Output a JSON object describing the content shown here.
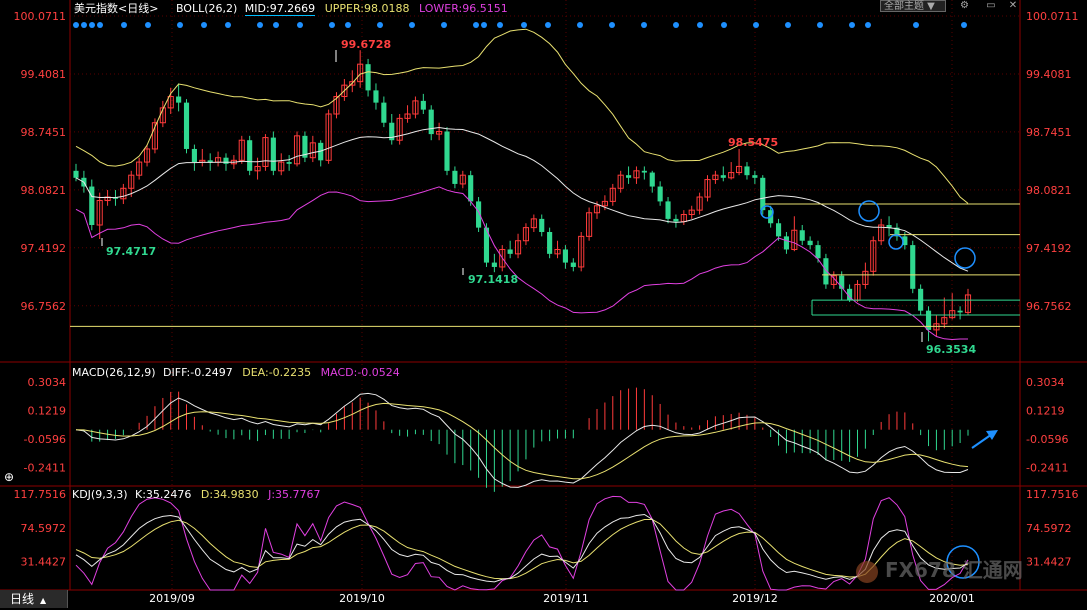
{
  "header": {
    "title": "美元指数<日线>",
    "boll_label": "BOLL(26,2)",
    "mid": "MID:97.2669",
    "upper": "UPPER:98.0188",
    "lower": "LOWER:96.5151",
    "theme_button": "全部主题"
  },
  "colors": {
    "up": "#ff3b3b",
    "down": "#30d890",
    "mid": "#e8e8e8",
    "upper": "#e8e070",
    "lower": "#e040e0",
    "axis_red": "#ff4040",
    "grid": "#5a0000",
    "marker": "#1e90ff"
  },
  "timeframe_tab": "日线",
  "dates": [
    "2019/09",
    "2019/10",
    "2019/11",
    "2019/12",
    "2020/01"
  ],
  "main_panel": {
    "y_ticks": [
      "100.0711",
      "99.4081",
      "98.7451",
      "98.0821",
      "97.4192",
      "96.7562"
    ],
    "annotations": [
      "99.6728",
      "97.4717",
      "97.1418",
      "98.5475",
      "96.3534"
    ],
    "horizontal_levels": [
      97.92,
      97.57,
      97.11,
      96.82,
      96.65,
      96.52
    ]
  },
  "macd_panel": {
    "title": "MACD(26,12,9)",
    "diff": "DIFF:-0.2497",
    "dea": "DEA:-0.2235",
    "macd": "MACD:-0.0524",
    "y_ticks": [
      "0.3034",
      "0.1219",
      "-0.0596",
      "-0.2411"
    ]
  },
  "kdj_panel": {
    "title": "KDJ(9,3,3)",
    "k": "K:35.2476",
    "d": "D:34.9830",
    "j": "J:35.7767",
    "y_ticks": [
      "117.7516",
      "74.5972",
      "31.4427"
    ]
  },
  "watermark": "FX678 汇通网",
  "chart_data": {
    "type": "candlestick",
    "title": "美元指数<日线>",
    "ylim": [
      96.25,
      100.0711
    ],
    "candles": [
      [
        98.3,
        98.22,
        98.38,
        98.18
      ],
      [
        98.22,
        98.12,
        98.3,
        98.05
      ],
      [
        98.12,
        97.68,
        98.2,
        97.62
      ],
      [
        97.68,
        97.96,
        98.05,
        97.52
      ],
      [
        97.96,
        98.0,
        98.08,
        97.9
      ],
      [
        98.0,
        97.98,
        98.08,
        97.9
      ],
      [
        97.98,
        98.1,
        98.15,
        97.92
      ],
      [
        98.1,
        98.25,
        98.3,
        98.0
      ],
      [
        98.25,
        98.4,
        98.45,
        98.2
      ],
      [
        98.4,
        98.55,
        98.6,
        98.35
      ],
      [
        98.55,
        98.85,
        98.9,
        98.5
      ],
      [
        98.85,
        99.02,
        99.1,
        98.8
      ],
      [
        99.02,
        99.15,
        99.25,
        98.95
      ],
      [
        99.15,
        99.08,
        99.3,
        98.98
      ],
      [
        99.08,
        98.55,
        99.12,
        98.5
      ],
      [
        98.55,
        98.4,
        98.6,
        98.3
      ],
      [
        98.4,
        98.42,
        98.55,
        98.35
      ],
      [
        98.42,
        98.4,
        98.5,
        98.3
      ],
      [
        98.4,
        98.45,
        98.52,
        98.35
      ],
      [
        98.45,
        98.38,
        98.5,
        98.3
      ],
      [
        98.38,
        98.42,
        98.48,
        98.32
      ],
      [
        98.42,
        98.65,
        98.7,
        98.38
      ],
      [
        98.65,
        98.3,
        98.7,
        98.25
      ],
      [
        98.3,
        98.35,
        98.45,
        98.2
      ],
      [
        98.35,
        98.68,
        98.72,
        98.3
      ],
      [
        98.68,
        98.3,
        98.75,
        98.25
      ],
      [
        98.3,
        98.4,
        98.5,
        98.25
      ],
      [
        98.4,
        98.38,
        98.48,
        98.3
      ],
      [
        98.38,
        98.7,
        98.75,
        98.35
      ],
      [
        98.7,
        98.45,
        98.75,
        98.4
      ],
      [
        98.45,
        98.62,
        98.7,
        98.4
      ],
      [
        98.62,
        98.42,
        98.65,
        98.35
      ],
      [
        98.42,
        98.95,
        99.0,
        98.38
      ],
      [
        98.95,
        99.15,
        99.2,
        98.9
      ],
      [
        99.15,
        99.28,
        99.35,
        99.1
      ],
      [
        99.28,
        99.32,
        99.45,
        99.2
      ],
      [
        99.32,
        99.52,
        99.68,
        99.25
      ],
      [
        99.52,
        99.22,
        99.58,
        99.15
      ],
      [
        99.22,
        99.08,
        99.3,
        99.0
      ],
      [
        99.08,
        98.85,
        99.15,
        98.8
      ],
      [
        98.85,
        98.65,
        98.95,
        98.6
      ],
      [
        98.65,
        98.9,
        98.95,
        98.6
      ],
      [
        98.9,
        98.95,
        99.05,
        98.85
      ],
      [
        98.95,
        99.1,
        99.15,
        98.9
      ],
      [
        99.1,
        99.0,
        99.18,
        98.95
      ],
      [
        99.0,
        98.72,
        99.05,
        98.65
      ],
      [
        98.72,
        98.75,
        98.85,
        98.65
      ],
      [
        98.75,
        98.3,
        98.8,
        98.25
      ],
      [
        98.3,
        98.15,
        98.35,
        98.1
      ],
      [
        98.15,
        98.25,
        98.3,
        98.1
      ],
      [
        98.25,
        97.95,
        98.3,
        97.9
      ],
      [
        97.95,
        97.65,
        98.0,
        97.6
      ],
      [
        97.65,
        97.25,
        97.7,
        97.2
      ],
      [
        97.25,
        97.2,
        97.35,
        97.14
      ],
      [
        97.2,
        97.4,
        97.45,
        97.15
      ],
      [
        97.4,
        97.35,
        97.5,
        97.3
      ],
      [
        97.35,
        97.5,
        97.58,
        97.3
      ],
      [
        97.5,
        97.65,
        97.7,
        97.45
      ],
      [
        97.65,
        97.75,
        97.8,
        97.6
      ],
      [
        97.75,
        97.6,
        97.8,
        97.55
      ],
      [
        97.6,
        97.35,
        97.65,
        97.3
      ],
      [
        97.35,
        97.4,
        97.5,
        97.3
      ],
      [
        97.4,
        97.25,
        97.45,
        97.18
      ],
      [
        97.25,
        97.2,
        97.3,
        97.15
      ],
      [
        97.2,
        97.55,
        97.6,
        97.15
      ],
      [
        97.55,
        97.82,
        97.88,
        97.5
      ],
      [
        97.82,
        97.9,
        97.95,
        97.75
      ],
      [
        97.9,
        97.95,
        98.02,
        97.85
      ],
      [
        97.95,
        98.1,
        98.15,
        97.9
      ],
      [
        98.1,
        98.25,
        98.3,
        98.05
      ],
      [
        98.25,
        98.22,
        98.35,
        98.15
      ],
      [
        98.22,
        98.3,
        98.35,
        98.15
      ],
      [
        98.3,
        98.28,
        98.35,
        98.2
      ],
      [
        98.28,
        98.12,
        98.3,
        98.05
      ],
      [
        98.12,
        97.95,
        98.18,
        97.9
      ],
      [
        97.95,
        97.75,
        98.0,
        97.7
      ],
      [
        97.75,
        97.72,
        97.8,
        97.65
      ],
      [
        97.72,
        97.8,
        97.85,
        97.68
      ],
      [
        97.8,
        97.85,
        97.9,
        97.75
      ],
      [
        97.85,
        98.0,
        98.05,
        97.8
      ],
      [
        98.0,
        98.2,
        98.25,
        97.95
      ],
      [
        98.2,
        98.25,
        98.3,
        98.15
      ],
      [
        98.25,
        98.22,
        98.35,
        98.18
      ],
      [
        98.22,
        98.28,
        98.4,
        98.2
      ],
      [
        98.28,
        98.35,
        98.55,
        98.25
      ],
      [
        98.35,
        98.25,
        98.4,
        98.2
      ],
      [
        98.25,
        98.22,
        98.3,
        98.15
      ],
      [
        98.22,
        97.85,
        98.25,
        97.8
      ],
      [
        97.85,
        97.7,
        97.9,
        97.65
      ],
      [
        97.7,
        97.55,
        97.75,
        97.5
      ],
      [
        97.55,
        97.4,
        97.6,
        97.35
      ],
      [
        97.4,
        97.62,
        97.78,
        97.38
      ],
      [
        97.62,
        97.5,
        97.68,
        97.45
      ],
      [
        97.5,
        97.45,
        97.55,
        97.4
      ],
      [
        97.45,
        97.3,
        97.5,
        97.25
      ],
      [
        97.3,
        97.0,
        97.35,
        96.95
      ],
      [
        97.0,
        97.1,
        97.15,
        96.95
      ],
      [
        97.1,
        96.95,
        97.15,
        96.82
      ],
      [
        96.95,
        96.82,
        97.0,
        96.8
      ],
      [
        96.82,
        97.0,
        97.05,
        96.8
      ],
      [
        97.0,
        97.15,
        97.25,
        96.95
      ],
      [
        97.15,
        97.5,
        97.55,
        97.1
      ],
      [
        97.5,
        97.68,
        97.75,
        97.45
      ],
      [
        97.68,
        97.65,
        97.78,
        97.55
      ],
      [
        97.65,
        97.55,
        97.7,
        97.5
      ],
      [
        97.55,
        97.45,
        97.6,
        97.4
      ],
      [
        97.45,
        96.95,
        97.5,
        96.9
      ],
      [
        96.95,
        96.7,
        97.0,
        96.65
      ],
      [
        96.7,
        96.48,
        96.75,
        96.35
      ],
      [
        96.48,
        96.55,
        96.65,
        96.4
      ],
      [
        96.55,
        96.62,
        96.85,
        96.5
      ],
      [
        96.62,
        96.7,
        96.9,
        96.6
      ],
      [
        96.7,
        96.68,
        96.75,
        96.6
      ],
      [
        96.68,
        96.88,
        96.95,
        96.65
      ]
    ]
  }
}
